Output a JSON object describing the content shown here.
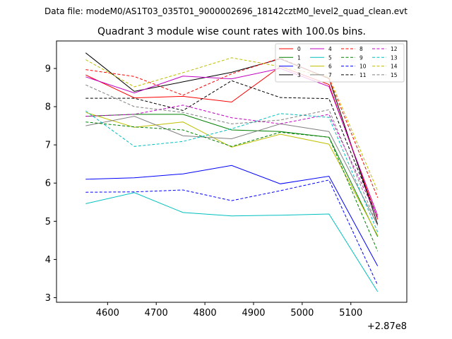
{
  "suptitle": "Data file: modeM0/AS1T03_035T01_9000002696_18142cztM0_level2_quad_clean.evt",
  "chart_data": {
    "type": "line",
    "title": "Quadrant 3 module wise count rates with 100.0s bins.",
    "xlabel": "",
    "ylabel": "",
    "x_offset_label": "+2.87e8",
    "x": [
      4555,
      4655,
      4755,
      4855,
      4955,
      5055,
      5155
    ],
    "xlim": [
      4495,
      5215
    ],
    "ylim": [
      2.88,
      9.72
    ],
    "x_ticks": [
      4600,
      4700,
      4800,
      4900,
      5000,
      5100
    ],
    "y_ticks": [
      3,
      4,
      5,
      6,
      7,
      8,
      9
    ],
    "grid": false,
    "legend_position": "top-right",
    "legend_columns": 4,
    "series": [
      {
        "name": "0",
        "color": "#ff0000",
        "dash": "solid",
        "values": [
          8.83,
          8.23,
          8.27,
          8.12,
          9.05,
          8.58,
          5.05
        ]
      },
      {
        "name": "1",
        "color": "#008000",
        "dash": "solid",
        "values": [
          7.75,
          7.8,
          7.8,
          7.39,
          7.35,
          7.2,
          4.6
        ]
      },
      {
        "name": "2",
        "color": "#0000ff",
        "dash": "solid",
        "values": [
          6.1,
          6.14,
          6.24,
          6.46,
          5.98,
          6.18,
          3.83
        ]
      },
      {
        "name": "3",
        "color": "#000000",
        "dash": "solid",
        "values": [
          9.41,
          8.4,
          8.65,
          8.9,
          9.25,
          8.74,
          4.92
        ]
      },
      {
        "name": "4",
        "color": "#c000c0",
        "dash": "solid",
        "values": [
          8.78,
          8.36,
          8.8,
          8.73,
          9.0,
          8.53,
          5.15
        ]
      },
      {
        "name": "5",
        "color": "#00bfbf",
        "dash": "solid",
        "values": [
          5.46,
          5.75,
          5.23,
          5.14,
          5.16,
          5.19,
          3.16
        ]
      },
      {
        "name": "6",
        "color": "#bfbf00",
        "dash": "solid",
        "values": [
          7.85,
          7.46,
          7.6,
          6.94,
          7.28,
          7.02,
          4.63
        ]
      },
      {
        "name": "7",
        "color": "#808080",
        "dash": "solid",
        "values": [
          7.5,
          7.75,
          7.24,
          7.16,
          7.55,
          7.35,
          4.9
        ]
      },
      {
        "name": "8",
        "color": "#ff0000",
        "dash": "dashed",
        "values": [
          8.97,
          8.79,
          8.3,
          8.86,
          9.27,
          8.73,
          5.62
        ]
      },
      {
        "name": "9",
        "color": "#008000",
        "dash": "dashed",
        "values": [
          7.6,
          7.47,
          7.39,
          6.96,
          7.33,
          7.2,
          4.22
        ]
      },
      {
        "name": "10",
        "color": "#0000ff",
        "dash": "dashed",
        "values": [
          5.76,
          5.77,
          5.82,
          5.54,
          5.8,
          6.08,
          3.33
        ]
      },
      {
        "name": "11",
        "color": "#000000",
        "dash": "dashed",
        "values": [
          8.22,
          8.22,
          7.9,
          8.68,
          8.24,
          8.21,
          5.08
        ]
      },
      {
        "name": "12",
        "color": "#c000c0",
        "dash": "dashed",
        "values": [
          7.75,
          7.8,
          8.04,
          7.71,
          7.55,
          7.8,
          5.1
        ]
      },
      {
        "name": "13",
        "color": "#00bfbf",
        "dash": "dashed",
        "values": [
          7.89,
          6.96,
          7.09,
          7.42,
          7.82,
          7.72,
          4.72
        ]
      },
      {
        "name": "14",
        "color": "#bfbf00",
        "dash": "dashed",
        "values": [
          9.23,
          8.52,
          8.89,
          9.28,
          9.05,
          8.78,
          5.8
        ]
      },
      {
        "name": "15",
        "color": "#808080",
        "dash": "dashed",
        "values": [
          8.57,
          8.0,
          7.85,
          7.55,
          7.65,
          7.92,
          4.88
        ]
      }
    ]
  }
}
